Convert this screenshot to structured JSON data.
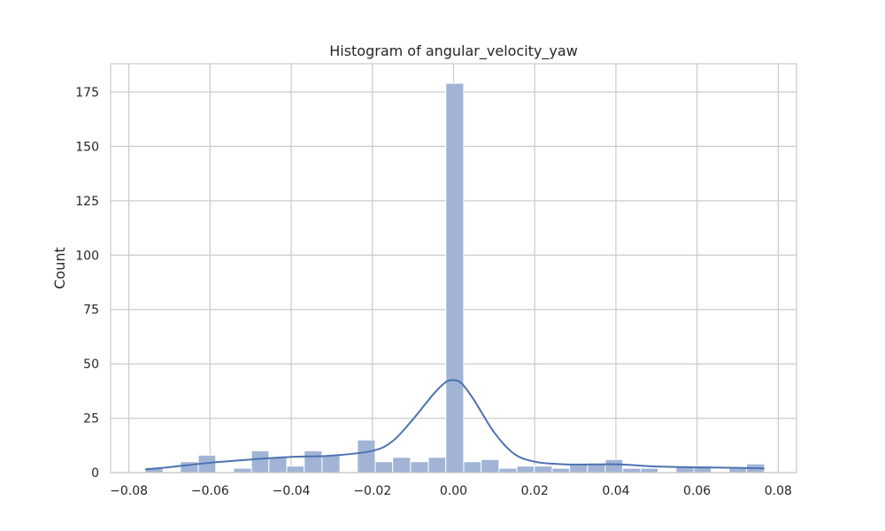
{
  "chart_data": {
    "type": "bar",
    "title": "Histogram of angular_velocity_yaw",
    "xlabel": "",
    "ylabel": "Count",
    "xlim": [
      -0.0845,
      0.0845
    ],
    "ylim": [
      0,
      188
    ],
    "xticks": [
      -0.08,
      -0.06,
      -0.04,
      -0.02,
      0.0,
      0.02,
      0.04,
      0.06,
      0.08
    ],
    "xtick_labels": [
      "−0.08",
      "−0.06",
      "−0.04",
      "−0.02",
      "0.00",
      "0.02",
      "0.04",
      "0.06",
      "0.08"
    ],
    "yticks": [
      0,
      25,
      50,
      75,
      100,
      125,
      150,
      175
    ],
    "ytick_labels": [
      "0",
      "25",
      "50",
      "75",
      "100",
      "125",
      "150",
      "175"
    ],
    "grid": true,
    "bin_edges": [
      -0.076,
      -0.0716,
      -0.0673,
      -0.0629,
      -0.0586,
      -0.0542,
      -0.0498,
      -0.0455,
      -0.0411,
      -0.0368,
      -0.0324,
      -0.028,
      -0.0237,
      -0.0193,
      -0.015,
      -0.0106,
      -0.0062,
      -0.0019,
      0.0025,
      0.0068,
      0.0112,
      0.0156,
      0.0199,
      0.0243,
      0.0286,
      0.033,
      0.0374,
      0.0417,
      0.0461,
      0.0504,
      0.0548,
      0.0592,
      0.0635,
      0.0679,
      0.0722,
      0.0766
    ],
    "counts": [
      2,
      0,
      5,
      8,
      0,
      2,
      10,
      7,
      3,
      10,
      8,
      0,
      15,
      5,
      7,
      5,
      7,
      179,
      5,
      6,
      2,
      3,
      3,
      2,
      4,
      4,
      6,
      2,
      2,
      0,
      3,
      3,
      0,
      2,
      4
    ],
    "bar_color": "#a1b4d6",
    "bar_edge_color": "#ffffff",
    "kde_color": "#4c72b0",
    "kde": {
      "x": [
        -0.076,
        -0.07,
        -0.06,
        -0.05,
        -0.04,
        -0.03,
        -0.02,
        -0.015,
        -0.01,
        -0.005,
        -0.002,
        0.0,
        0.002,
        0.005,
        0.01,
        0.015,
        0.02,
        0.025,
        0.03,
        0.04,
        0.05,
        0.06,
        0.07,
        0.0766
      ],
      "y": [
        1.5,
        2.5,
        4.5,
        6.0,
        7.2,
        7.8,
        10.0,
        14.5,
        24.5,
        36.0,
        41.5,
        42.5,
        41.0,
        33.5,
        18.5,
        8.5,
        5.0,
        4.0,
        3.7,
        3.8,
        2.8,
        2.4,
        2.2,
        1.9
      ]
    }
  }
}
